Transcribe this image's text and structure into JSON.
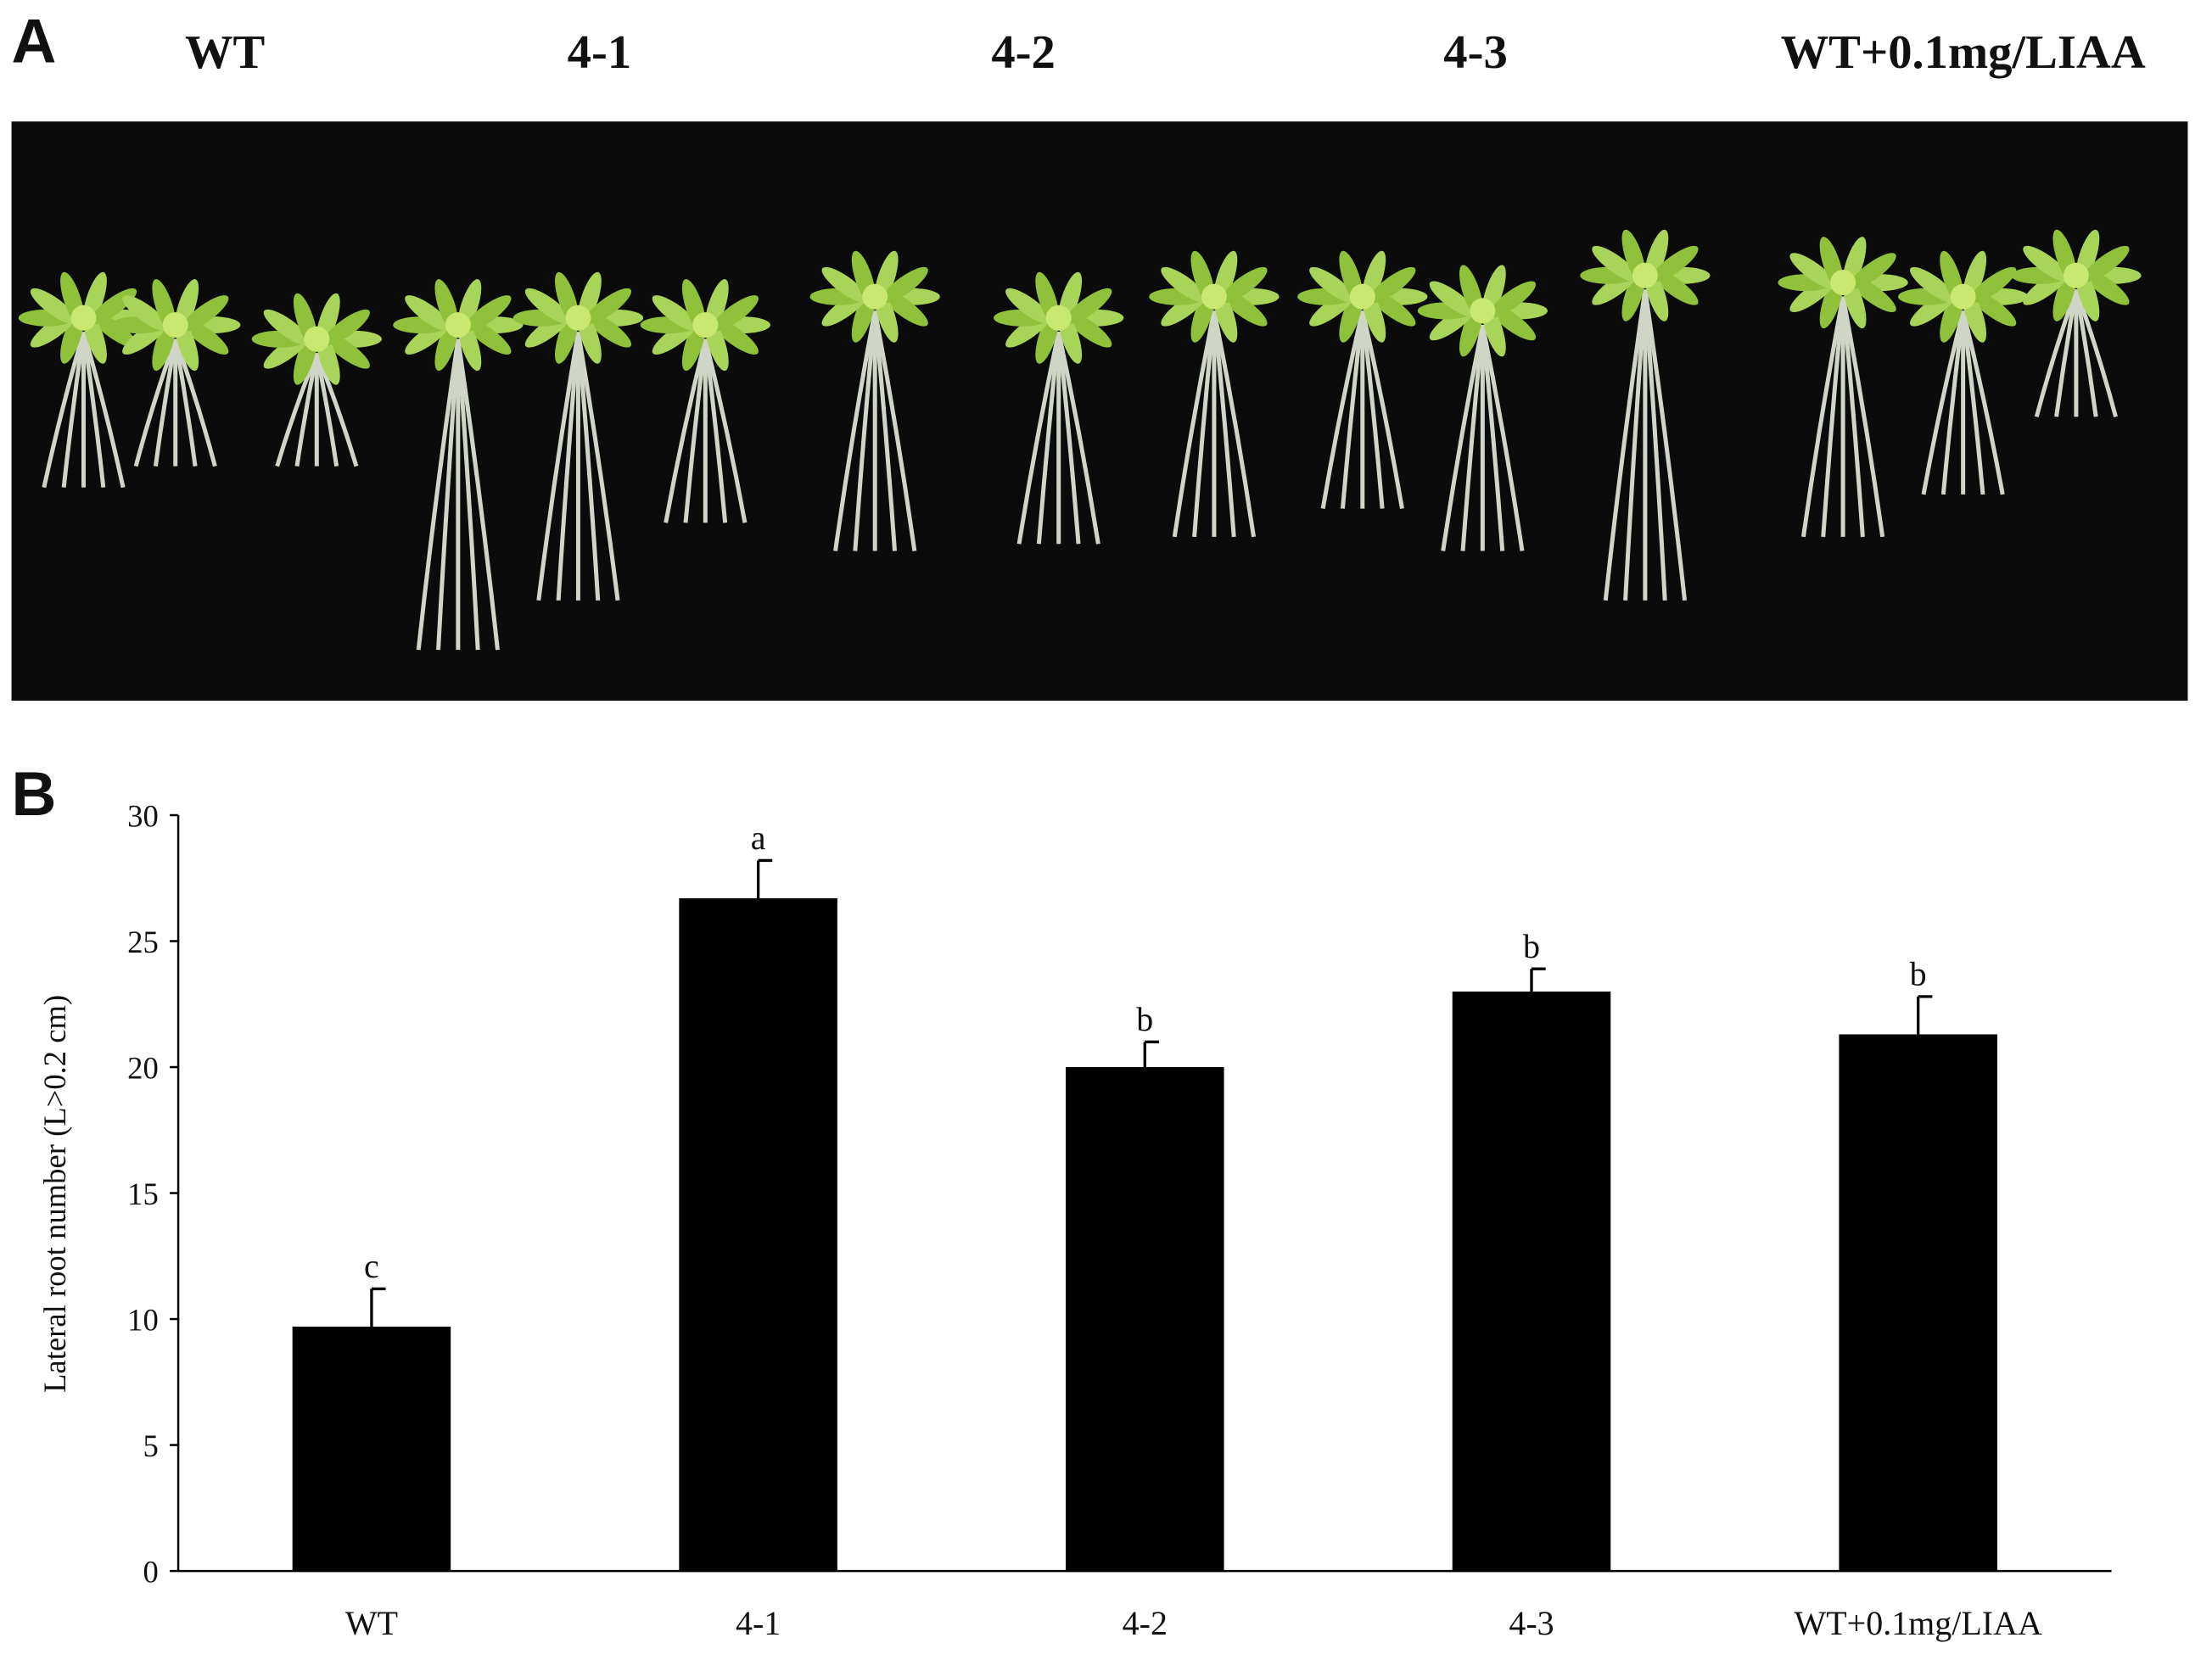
{
  "panel_labels": [
    "A",
    "B"
  ],
  "photo_labels": [
    "WT",
    "4-1",
    "4-2",
    "4-3",
    "WT+0.1mg/LIAA"
  ],
  "chart_data": {
    "type": "bar",
    "y_label": "Lateral root number (L>0.2 cm)",
    "categories": [
      "WT",
      "4-1",
      "4-2",
      "4-3",
      "WT+0.1mg/LIAA"
    ],
    "values": [
      9.7,
      26.7,
      20.0,
      23.0,
      21.3
    ],
    "errors": [
      1.5,
      1.5,
      1.0,
      0.9,
      1.5
    ],
    "letters": [
      "c",
      "a",
      "b",
      "b",
      "b"
    ],
    "color": "#000000",
    "ylim": [
      0,
      30
    ],
    "yticks": [
      0,
      5,
      10,
      15,
      20,
      25,
      30
    ]
  }
}
